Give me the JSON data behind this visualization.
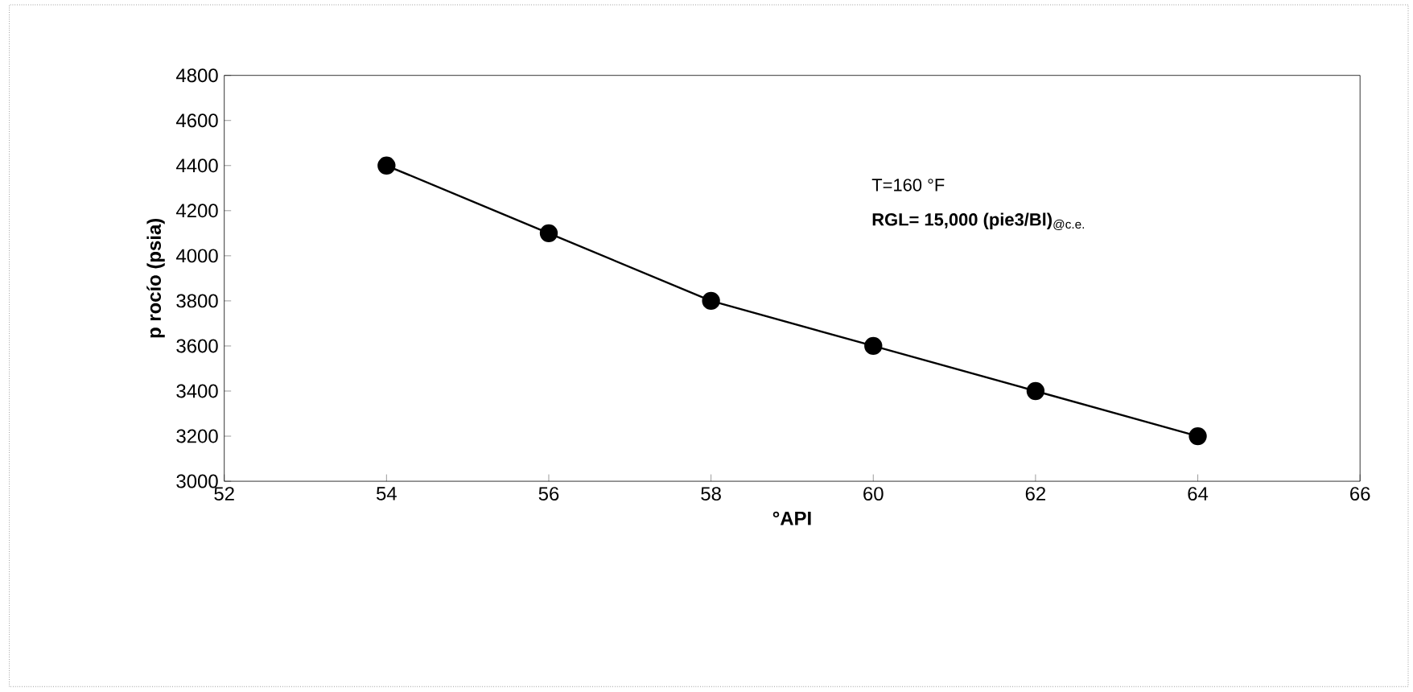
{
  "chart_data": {
    "type": "line",
    "xlabel": "°API",
    "ylabel": "p rocío (psia)",
    "x": [
      54,
      56,
      58,
      60,
      62,
      64
    ],
    "values": [
      4400,
      4100,
      3800,
      3600,
      3400,
      3200
    ],
    "color": "#000000",
    "marker": "circle",
    "line_style": "solid",
    "grid": false,
    "xlim": [
      52,
      66
    ],
    "xticks": [
      52,
      54,
      56,
      58,
      60,
      62,
      64,
      66
    ],
    "ylim": [
      3000,
      4800
    ],
    "yticks": [
      3000,
      3200,
      3400,
      3600,
      3800,
      4000,
      4200,
      4400,
      4600,
      4800
    ],
    "annotations": [
      "T=160 °F",
      "**RGL= 15,000 (pie3/Bl)**$_{@c.e.}$"
    ]
  }
}
